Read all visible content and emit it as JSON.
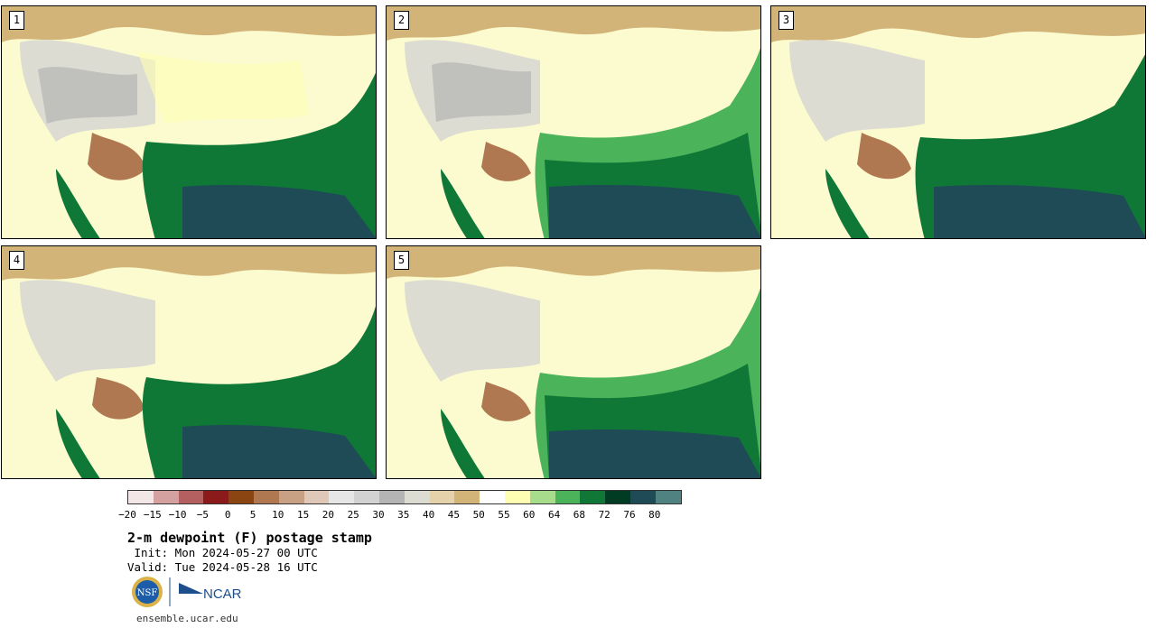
{
  "panels": [
    {
      "label": "1"
    },
    {
      "label": "2"
    },
    {
      "label": "3"
    },
    {
      "label": "4"
    },
    {
      "label": "5"
    }
  ],
  "colorbar": {
    "colors": [
      "#f2e6e6",
      "#d4a0a0",
      "#b56060",
      "#8b1a1a",
      "#8b4513",
      "#b07850",
      "#c8a084",
      "#e0c8b8",
      "#e6e6e6",
      "#d2d2d2",
      "#b4b4b4",
      "#dcdcd2",
      "#e6d2aa",
      "#d2b478",
      "#ffffff",
      "#ffffb4",
      "#a6dc8c",
      "#4bb45a",
      "#0f7837",
      "#003c23",
      "#1e4b55",
      "#508282"
    ],
    "labels": [
      "−20",
      "−15",
      "−10",
      "−5",
      "0",
      "5",
      "10",
      "15",
      "20",
      "25",
      "30",
      "35",
      "40",
      "45",
      "50",
      "55",
      "60",
      "64",
      "68",
      "72",
      "76",
      "80"
    ]
  },
  "title": "2-m dewpoint (F) postage stamp",
  "init": " Init: Mon 2024-05-27 00 UTC",
  "valid": "Valid: Tue 2024-05-28 16 UTC",
  "logos": {
    "nsf_text": "NSF",
    "ncar_text": "NCAR"
  },
  "site": "ensemble.ucar.edu"
}
